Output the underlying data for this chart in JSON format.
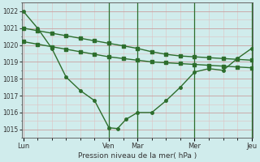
{
  "title": "",
  "xlabel": "Pression niveau de la mer( hPa )",
  "ylabel": "",
  "bg_color": "#d0ecec",
  "grid_major_color": "#c8a0a0",
  "grid_minor_color": "#dfc0c0",
  "line_color": "#2d6e2d",
  "vline_color": "#2d6e2d",
  "ylim": [
    1014.5,
    1022.5
  ],
  "yticks": [
    1015,
    1016,
    1017,
    1018,
    1019,
    1020,
    1021,
    1022
  ],
  "xtick_labels": [
    "Lun",
    "",
    "",
    "Ven",
    "Mar",
    "",
    "Mer",
    "",
    "Jeu"
  ],
  "xtick_positions": [
    0,
    1,
    2,
    3,
    4,
    5,
    6,
    7,
    8
  ],
  "xtick_show": [
    "Lun",
    "Ven",
    "Mar",
    "Mer",
    "Jeu"
  ],
  "xtick_show_pos": [
    0,
    3,
    4,
    6,
    8
  ],
  "vline_positions": [
    3.0,
    4.0,
    6.0,
    8.0
  ],
  "line1_x": [
    0,
    0.5,
    1.0,
    1.5,
    2.0,
    2.5,
    3.0,
    3.3,
    3.6,
    4.0,
    4.5,
    5.0,
    5.5,
    6.0,
    6.5,
    7.0,
    7.5,
    8.0
  ],
  "line1_y": [
    1022.0,
    1021.0,
    1019.8,
    1018.1,
    1017.3,
    1016.7,
    1015.1,
    1015.05,
    1015.6,
    1016.0,
    1016.0,
    1016.7,
    1017.5,
    1018.4,
    1018.6,
    1018.5,
    1019.2,
    1019.8
  ],
  "line2_x": [
    0,
    0.5,
    1.0,
    1.5,
    2.0,
    2.5,
    3.0,
    3.5,
    4.0,
    4.5,
    5.0,
    5.5,
    6.0,
    6.5,
    7.0,
    7.5,
    8.0
  ],
  "line2_y": [
    1021.0,
    1020.85,
    1020.7,
    1020.55,
    1020.4,
    1020.25,
    1020.1,
    1019.95,
    1019.8,
    1019.6,
    1019.45,
    1019.35,
    1019.3,
    1019.25,
    1019.2,
    1019.15,
    1019.1
  ],
  "line3_x": [
    0,
    0.5,
    1.0,
    1.5,
    2.0,
    2.5,
    3.0,
    3.5,
    4.0,
    4.5,
    5.0,
    5.5,
    6.0,
    6.5,
    7.0,
    7.5,
    8.0
  ],
  "line3_y": [
    1020.2,
    1020.05,
    1019.9,
    1019.75,
    1019.6,
    1019.45,
    1019.3,
    1019.2,
    1019.1,
    1019.0,
    1018.95,
    1018.9,
    1018.85,
    1018.8,
    1018.75,
    1018.7,
    1018.65
  ]
}
